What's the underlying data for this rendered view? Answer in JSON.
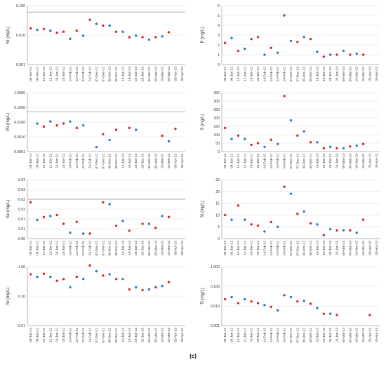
{
  "figure_label": "(c)",
  "colors": {
    "red": "#d42b2b",
    "blue": "#2f78c4",
    "gray_line": "#b5b5b5",
    "grid": "#d9d9d9"
  },
  "chart_data": [
    {
      "id": "ni",
      "type": "scatter",
      "ylabel": "Ni (mg/L)",
      "log": true,
      "ylim": [
        0.001,
        0.1
      ],
      "yticks": [
        0.001,
        0.01,
        0.1
      ],
      "ytick_labels": [
        "0.001",
        "0.010",
        "0.100"
      ],
      "threshold": 0.06,
      "categories": [
        "06-Jan-22",
        "06-Jan-22",
        "12-Jan-22",
        "12-Jan-22",
        "23-Jan-22",
        "23-Jan-22",
        "14-Feb-22",
        "14-Feb-22",
        "24-Feb-22",
        "24-Feb-22",
        "07-Dec-22",
        "07-Dec-22",
        "30-Dec-22",
        "30-Dec-22",
        "19-Jan-23",
        "19-Jan-23",
        "25-Jan-23",
        "25-Jan-23",
        "05-Mar-23",
        "05-Mar-23",
        "10-Mar-23",
        "10-Mar-23",
        "03-Apr-23",
        "03-Apr-23"
      ],
      "values": [
        0.017,
        0.015,
        0.016,
        0.014,
        0.012,
        0.013,
        0.0075,
        0.014,
        0.0095,
        0.033,
        0.024,
        0.021,
        0.021,
        0.013,
        0.013,
        0.0085,
        0.0095,
        0.0085,
        0.007,
        0.0085,
        0.009,
        0.0125,
        null,
        null
      ],
      "colors": [
        "red",
        "blue",
        "red",
        "blue",
        "red",
        "red",
        "blue",
        "red",
        "blue",
        "red",
        "blue",
        "red",
        "blue",
        "red",
        "blue",
        "red",
        "blue",
        "red",
        "blue",
        "red",
        "blue",
        "red",
        null,
        null
      ]
    },
    {
      "id": "p",
      "type": "scatter",
      "ylabel": "P (mg/L)",
      "log": false,
      "ylim": [
        0,
        6
      ],
      "yticks": [
        0,
        1,
        2,
        3,
        4,
        5,
        6
      ],
      "ytick_labels": [
        "0",
        "1",
        "2",
        "3",
        "4",
        "5",
        "6"
      ],
      "categories": [
        "06-Jan-22",
        "06-Jan-22",
        "12-Jan-22",
        "12-Jan-22",
        "23-Jan-22",
        "23-Jan-22",
        "14-Feb-22",
        "14-Feb-22",
        "24-Feb-22",
        "24-Feb-22",
        "07-Dec-22",
        "07-Dec-22",
        "30-Dec-22",
        "30-Dec-22",
        "19-Jan-23",
        "19-Jan-23",
        "25-Jan-23",
        "25-Jan-23",
        "05-Mar-23",
        "05-Mar-23",
        "10-Mar-23",
        "10-Mar-23",
        "03-Apr-23",
        "03-Apr-23"
      ],
      "values": [
        2.2,
        2.7,
        1.4,
        1.6,
        2.6,
        2.8,
        1.0,
        1.7,
        1.2,
        5.0,
        2.4,
        2.3,
        2.8,
        2.6,
        1.3,
        0.8,
        1.0,
        1.0,
        1.4,
        1.0,
        1.1,
        1.0,
        null,
        null
      ],
      "colors": [
        "red",
        "blue",
        "red",
        "blue",
        "red",
        "red",
        "blue",
        "red",
        "blue",
        "red",
        "blue",
        "red",
        "blue",
        "red",
        "blue",
        "red",
        "blue",
        "red",
        "blue",
        "red",
        "blue",
        "red",
        null,
        null
      ]
    },
    {
      "id": "pb",
      "type": "scatter",
      "ylabel": "Pb (mg/L)",
      "log": true,
      "ylim": [
        0.0001,
        1
      ],
      "yticks": [
        0.0001,
        0.001,
        0.01,
        0.1,
        1
      ],
      "ytick_labels": [
        "0.0001",
        "0.0010",
        "0.0100",
        "0.1000",
        "1.0000"
      ],
      "threshold": 0.05,
      "categories": [
        "06-Jan-22",
        "06-Jan-22",
        "12-Jan-22",
        "12-Jan-22",
        "23-Jan-22",
        "23-Jan-22",
        "14-Feb-22",
        "14-Feb-22",
        "24-Feb-22",
        "24-Feb-22",
        "07-Dec-22",
        "07-Dec-22",
        "30-Dec-22",
        "30-Dec-22",
        "19-Jan-23",
        "19-Jan-23",
        "25-Jan-23",
        "25-Jan-23",
        "05-Mar-23",
        "05-Mar-23",
        "10-Mar-23",
        "10-Mar-23",
        "03-Apr-23",
        "03-Apr-23"
      ],
      "values": [
        null,
        0.008,
        0.005,
        0.011,
        0.006,
        0.008,
        0.011,
        0.004,
        0.006,
        null,
        0.0002,
        0.0015,
        0.0006,
        0.003,
        null,
        0.004,
        0.003,
        null,
        null,
        null,
        0.0012,
        0.0005,
        0.0035,
        null
      ],
      "colors": [
        null,
        "blue",
        "red",
        "blue",
        "red",
        "red",
        "blue",
        "red",
        "blue",
        null,
        "blue",
        "red",
        "blue",
        "red",
        null,
        "red",
        "blue",
        null,
        null,
        null,
        "red",
        "blue",
        "red",
        null
      ]
    },
    {
      "id": "s",
      "type": "scatter",
      "ylabel": "S (mg/L)",
      "log": false,
      "ylim": [
        0,
        350
      ],
      "yticks": [
        0,
        50,
        100,
        150,
        200,
        250,
        300,
        350
      ],
      "ytick_labels": [
        "0",
        "50",
        "100",
        "150",
        "200",
        "250",
        "300",
        "350"
      ],
      "categories": [
        "06-Jan-22",
        "06-Jan-22",
        "12-Jan-22",
        "12-Jan-22",
        "23-Jan-22",
        "23-Jan-22",
        "14-Feb-22",
        "14-Feb-22",
        "24-Feb-22",
        "24-Feb-22",
        "07-Dec-22",
        "07-Dec-22",
        "30-Dec-22",
        "30-Dec-22",
        "19-Jan-23",
        "19-Jan-23",
        "25-Jan-23",
        "25-Jan-23",
        "05-Mar-23",
        "05-Mar-23",
        "10-Mar-23",
        "10-Mar-23",
        "03-Apr-23",
        "03-Apr-23"
      ],
      "values": [
        140,
        75,
        95,
        75,
        40,
        50,
        28,
        70,
        45,
        330,
        185,
        95,
        120,
        55,
        55,
        20,
        28,
        20,
        20,
        30,
        35,
        45,
        null,
        null
      ],
      "colors": [
        "red",
        "blue",
        "red",
        "blue",
        "red",
        "red",
        "blue",
        "red",
        "blue",
        "red",
        "blue",
        "red",
        "blue",
        "red",
        "blue",
        "red",
        "blue",
        "red",
        "blue",
        "red",
        "blue",
        "red",
        null,
        null
      ]
    },
    {
      "id": "se",
      "type": "scatter",
      "ylabel": "Se (mg/L)",
      "log": false,
      "ylim": [
        0,
        0.03
      ],
      "yticks": [
        0,
        0.005,
        0.01,
        0.015,
        0.02,
        0.025,
        0.03
      ],
      "ytick_labels": [
        "0.00",
        "0.01",
        "0.01",
        "0.02",
        "0.02",
        "0.03",
        "0.03"
      ],
      "threshold": 0.02,
      "categories": [
        "06-Jan-22",
        "06-Jan-22",
        "12-Jan-22",
        "12-Jan-22",
        "23-Jan-22",
        "23-Jan-22",
        "14-Feb-22",
        "14-Feb-22",
        "24-Feb-22",
        "24-Feb-22",
        "07-Dec-22",
        "07-Dec-22",
        "30-Dec-22",
        "30-Dec-22",
        "19-Jan-23",
        "19-Jan-23",
        "25-Jan-23",
        "25-Jan-23",
        "05-Mar-23",
        "05-Mar-23",
        "10-Mar-23",
        "10-Mar-23",
        "03-Apr-23",
        "03-Apr-23"
      ],
      "values": [
        0.0185,
        0.0095,
        0.011,
        0.0115,
        0.012,
        0.0075,
        0.003,
        0.0085,
        0.0025,
        0.0025,
        null,
        0.0185,
        0.0175,
        0.0065,
        0.009,
        0.004,
        null,
        0.0075,
        0.0075,
        0.0055,
        0.0115,
        0.011,
        null,
        null
      ],
      "colors": [
        "red",
        "blue",
        "red",
        "blue",
        "red",
        "red",
        "blue",
        "red",
        "blue",
        "red",
        null,
        "red",
        "blue",
        "red",
        "blue",
        "red",
        null,
        "red",
        "blue",
        "red",
        "blue",
        "red",
        null,
        null
      ]
    },
    {
      "id": "si",
      "type": "scatter",
      "ylabel": "Si (mg/L)",
      "log": false,
      "ylim": [
        0,
        25
      ],
      "yticks": [
        0,
        5,
        10,
        15,
        20,
        25
      ],
      "ytick_labels": [
        "0",
        "5",
        "10",
        "15",
        "20",
        "25"
      ],
      "categories": [
        "06-Jan-22",
        "06-Jan-22",
        "12-Jan-22",
        "12-Jan-22",
        "23-Jan-22",
        "23-Jan-22",
        "14-Feb-22",
        "14-Feb-22",
        "24-Feb-22",
        "24-Feb-22",
        "07-Dec-22",
        "07-Dec-22",
        "30-Dec-22",
        "30-Dec-22",
        "19-Jan-23",
        "19-Jan-23",
        "25-Jan-23",
        "25-Jan-23",
        "05-Mar-23",
        "05-Mar-23",
        "10-Mar-23",
        "10-Mar-23",
        "03-Apr-23",
        "03-Apr-23"
      ],
      "values": [
        10,
        8,
        14,
        8,
        6,
        5.5,
        3,
        7,
        5,
        22,
        19,
        10.5,
        11.5,
        6.5,
        6,
        1.5,
        4,
        3.5,
        3.5,
        3.5,
        2.5,
        8,
        null,
        null
      ],
      "colors": [
        "red",
        "blue",
        "red",
        "blue",
        "red",
        "red",
        "blue",
        "red",
        "blue",
        "red",
        "blue",
        "red",
        "blue",
        "red",
        "blue",
        "red",
        "blue",
        "red",
        "blue",
        "red",
        "blue",
        "red",
        null,
        null
      ]
    },
    {
      "id": "sr",
      "type": "scatter",
      "ylabel": "Sr (mg/L)",
      "log": true,
      "ylim": [
        0.01,
        1
      ],
      "yticks": [
        0.01,
        0.1,
        1
      ],
      "ytick_labels": [
        "0.01",
        "0.10",
        "1.00"
      ],
      "categories": [
        "06-Jan-22",
        "06-Jan-22",
        "12-Jan-22",
        "12-Jan-22",
        "23-Jan-22",
        "23-Jan-22",
        "14-Feb-22",
        "14-Feb-22",
        "24-Feb-22",
        "24-Feb-22",
        "07-Dec-22",
        "07-Dec-22",
        "30-Dec-22",
        "30-Dec-22",
        "19-Jan-23",
        "19-Jan-23",
        "25-Jan-23",
        "25-Jan-23",
        "05-Mar-23",
        "05-Mar-23",
        "10-Mar-23",
        "10-Mar-23",
        "03-Apr-23",
        "03-Apr-23"
      ],
      "values": [
        0.55,
        0.45,
        0.57,
        0.45,
        0.33,
        0.38,
        0.2,
        0.45,
        0.38,
        1.1,
        0.7,
        0.5,
        0.55,
        0.38,
        0.38,
        0.17,
        0.2,
        0.16,
        0.17,
        0.2,
        0.22,
        0.3,
        null,
        null
      ],
      "colors": [
        "red",
        "blue",
        "red",
        "blue",
        "red",
        "red",
        "blue",
        "red",
        "blue",
        "red",
        "blue",
        "red",
        "blue",
        "red",
        "blue",
        "red",
        "blue",
        "red",
        "blue",
        "red",
        "blue",
        "red",
        null,
        null
      ]
    },
    {
      "id": "ti",
      "type": "scatter",
      "ylabel": "Ti (mg/L)",
      "log": true,
      "ylim": [
        0.001,
        1
      ],
      "yticks": [
        0.001,
        0.01,
        0.1,
        1
      ],
      "ytick_labels": [
        "0.001",
        "0.010",
        "0.100",
        "1.000"
      ],
      "categories": [
        "06-Jan-22",
        "06-Jan-22",
        "12-Jan-22",
        "12-Jan-22",
        "23-Jan-22",
        "23-Jan-22",
        "14-Feb-22",
        "14-Feb-22",
        "24-Feb-22",
        "24-Feb-22",
        "07-Dec-22",
        "07-Dec-22",
        "30-Dec-22",
        "30-Dec-22",
        "19-Jan-23",
        "19-Jan-23",
        "25-Jan-23",
        "25-Jan-23",
        "05-Mar-23",
        "05-Mar-23",
        "10-Mar-23",
        "10-Mar-23",
        "03-Apr-23",
        "03-Apr-23"
      ],
      "values": [
        0.022,
        0.028,
        0.014,
        0.022,
        0.017,
        0.014,
        0.011,
        0.009,
        0.006,
        0.035,
        0.028,
        0.017,
        0.018,
        0.013,
        0.008,
        0.004,
        0.004,
        0.0035,
        null,
        null,
        null,
        null,
        0.0035,
        null
      ],
      "colors": [
        "red",
        "blue",
        "red",
        "blue",
        "red",
        "red",
        "blue",
        "red",
        "blue",
        "red",
        "blue",
        "red",
        "blue",
        "red",
        "blue",
        "red",
        "blue",
        "red",
        null,
        null,
        null,
        null,
        "red",
        null
      ]
    }
  ]
}
